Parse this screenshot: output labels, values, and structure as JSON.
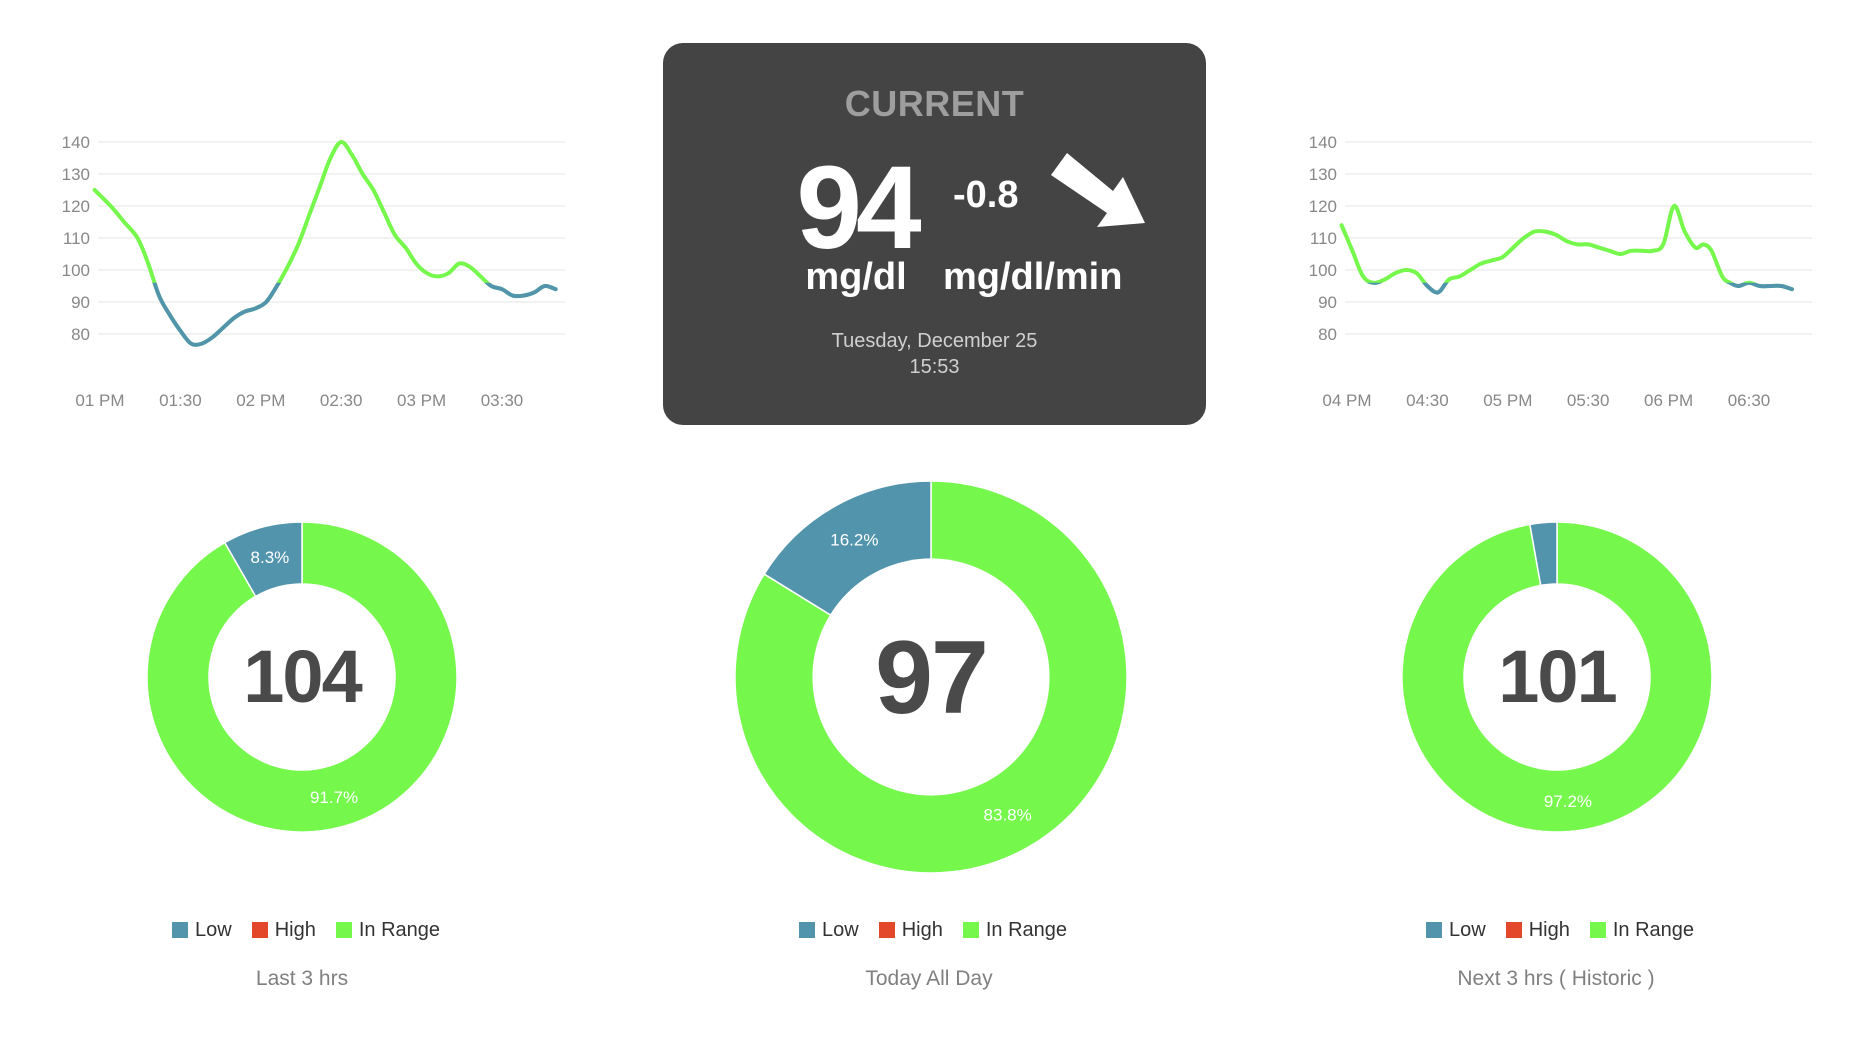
{
  "colors": {
    "low": "#5394ad",
    "high": "#e3482a",
    "in_range": "#76f74c",
    "panel": "#444444"
  },
  "current": {
    "title": "CURRENT",
    "value": "94",
    "unit": "mg/dl",
    "delta": "-0.8",
    "delta_unit": "mg/dl/min",
    "trend_icon": "arrow-down-right-icon",
    "date": "Tuesday, December 25",
    "time": "15:53"
  },
  "legend": {
    "low": "Low",
    "high": "High",
    "in_range": "In Range"
  },
  "donuts": [
    {
      "center": "104",
      "caption": "Last 3 hrs"
    },
    {
      "center": "97",
      "caption": "Today All Day"
    },
    {
      "center": "101",
      "caption": "Next 3 hrs ( Historic )"
    }
  ],
  "chart_data": [
    {
      "type": "line",
      "y_ticks": [
        "140",
        "130",
        "120",
        "110",
        "100",
        "90",
        "80"
      ],
      "ylim": [
        75,
        140
      ],
      "x_ticks": [
        "01 PM",
        "01:30",
        "02 PM",
        "02:30",
        "03 PM",
        "03:30"
      ],
      "x_tick_minutes": [
        0,
        30,
        60,
        90,
        120,
        150
      ],
      "xlim": [
        0,
        172
      ],
      "low_threshold": 96,
      "grid": true,
      "series": [
        {
          "x": [
            -2,
            4,
            9,
            14,
            18,
            22,
            26,
            30,
            34,
            38,
            42,
            46,
            50,
            54,
            58,
            62,
            66,
            70,
            74,
            78,
            82,
            86,
            90,
            94,
            98,
            102,
            106,
            110,
            114,
            118,
            122,
            126,
            130,
            134,
            138,
            142,
            146,
            150,
            154,
            158,
            162,
            166,
            170
          ],
          "y": [
            125,
            120,
            115,
            110,
            102,
            92,
            86,
            81,
            77,
            77,
            79,
            82,
            85,
            87,
            88,
            90,
            95,
            101,
            108,
            117,
            126,
            135,
            140,
            136,
            130,
            125,
            118,
            111,
            107,
            102,
            99,
            98,
            99,
            102,
            101,
            98,
            95,
            94,
            92,
            92,
            93,
            95,
            94
          ]
        }
      ]
    },
    {
      "type": "line",
      "y_ticks": [
        "140",
        "130",
        "120",
        "110",
        "100",
        "90",
        "80"
      ],
      "ylim": [
        75,
        140
      ],
      "x_ticks": [
        "04 PM",
        "04:30",
        "05 PM",
        "05:30",
        "06 PM",
        "06:30"
      ],
      "x_tick_minutes": [
        0,
        30,
        60,
        90,
        120,
        150
      ],
      "xlim": [
        0,
        172
      ],
      "low_threshold": 96,
      "grid": true,
      "series": [
        {
          "x": [
            -2,
            2,
            6,
            10,
            14,
            18,
            22,
            26,
            30,
            34,
            38,
            42,
            46,
            50,
            54,
            58,
            62,
            66,
            70,
            74,
            78,
            82,
            86,
            90,
            94,
            98,
            102,
            106,
            110,
            114,
            118,
            122,
            126,
            130,
            133,
            136,
            140,
            143,
            146,
            150,
            154,
            158,
            162,
            166
          ],
          "y": [
            114,
            106,
            98,
            96,
            97,
            99,
            100,
            99,
            95,
            93,
            97,
            98,
            100,
            102,
            103,
            104,
            107,
            110,
            112,
            112,
            111,
            109,
            108,
            108,
            107,
            106,
            105,
            106,
            106,
            106,
            108,
            120,
            112,
            107,
            108,
            106,
            98,
            96,
            95,
            96,
            95,
            95,
            95,
            94
          ]
        }
      ]
    },
    {
      "type": "pie",
      "title": "Last 3 hrs",
      "center_value": "104",
      "labels": [
        "Low",
        "High",
        "In Range"
      ],
      "values": [
        8.3,
        0,
        91.7
      ],
      "value_labels": [
        "8.3%",
        "",
        "91.7%"
      ]
    },
    {
      "type": "pie",
      "title": "Today All Day",
      "center_value": "97",
      "labels": [
        "Low",
        "High",
        "In Range"
      ],
      "values": [
        16.2,
        0,
        83.8
      ],
      "value_labels": [
        "16.2%",
        "",
        "83.8%"
      ]
    },
    {
      "type": "pie",
      "title": "Next 3 hrs ( Historic )",
      "center_value": "101",
      "labels": [
        "Low",
        "High",
        "In Range"
      ],
      "values": [
        2.8,
        0,
        97.2
      ],
      "value_labels": [
        "",
        "",
        "97.2%"
      ]
    }
  ]
}
